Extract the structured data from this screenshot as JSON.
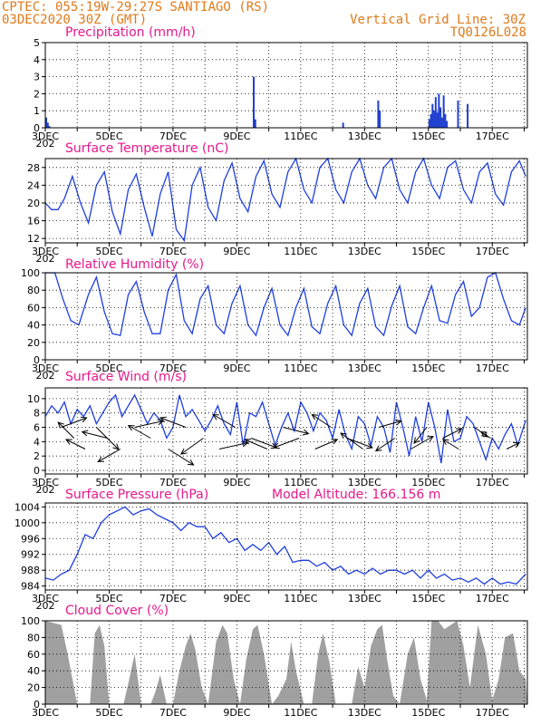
{
  "header": {
    "line1": "CPTEC:   055:19W-29:27S   SANTIAGO (RS)",
    "line2": "03DEC2020 30Z (GMT)",
    "right1": "Vertical Grid Line: 30Z",
    "right2": "TQ0126L028"
  },
  "colors": {
    "header": "#e07a1a",
    "title": "#e8188c",
    "line": "#1f3fe0",
    "bars": "#2040d0",
    "cloud": "#a0a0a0",
    "grid": "#000000",
    "arrows": "#000000"
  },
  "x_axis": {
    "start_day": 3,
    "end_day": 18.1,
    "tick_days": [
      3,
      5,
      7,
      9,
      11,
      13,
      15,
      17
    ],
    "tick_labels": [
      "3DEC",
      "5DEC",
      "7DEC",
      "9DEC",
      "11DEC",
      "13DEC",
      "15DEC",
      "17DEC"
    ],
    "overlap_label": "202"
  },
  "chart_data": [
    {
      "id": "precip",
      "type": "bar",
      "title": "Precipitation (mm/h)",
      "ylim": [
        0,
        5
      ],
      "yticks": [
        0,
        1,
        2,
        3,
        4,
        5
      ],
      "ytick_labels": [
        "0",
        "1",
        "2",
        "3",
        "4",
        "5"
      ],
      "x": [
        3.0,
        3.05,
        3.1,
        9.5,
        9.55,
        12.3,
        13.4,
        13.45,
        15.0,
        15.05,
        15.1,
        15.15,
        15.2,
        15.25,
        15.3,
        15.35,
        15.4,
        15.45,
        15.5,
        15.55,
        15.9,
        16.2
      ],
      "values": [
        0.6,
        0.3,
        0.1,
        3.0,
        0.5,
        0.3,
        1.6,
        1.0,
        0.5,
        0.8,
        1.4,
        1.0,
        1.8,
        0.9,
        2.0,
        1.2,
        0.6,
        1.9,
        0.8,
        0.4,
        1.6,
        1.4
      ]
    },
    {
      "id": "temp",
      "type": "line",
      "title": "Surface Temperature (nC)",
      "ylim": [
        11,
        30
      ],
      "yticks": [
        12,
        16,
        20,
        24,
        28
      ],
      "ytick_labels": [
        "12",
        "16",
        "20",
        "24",
        "28"
      ],
      "x": [
        3.0,
        3.2,
        3.4,
        3.6,
        3.85,
        4.1,
        4.35,
        4.6,
        4.85,
        5.1,
        5.35,
        5.6,
        5.85,
        6.1,
        6.35,
        6.6,
        6.85,
        7.1,
        7.35,
        7.6,
        7.85,
        8.1,
        8.35,
        8.6,
        8.85,
        9.1,
        9.35,
        9.6,
        9.85,
        10.1,
        10.35,
        10.6,
        10.85,
        11.1,
        11.35,
        11.6,
        11.85,
        12.1,
        12.35,
        12.6,
        12.85,
        13.1,
        13.35,
        13.6,
        13.85,
        14.1,
        14.35,
        14.6,
        14.85,
        15.1,
        15.35,
        15.6,
        15.85,
        16.1,
        16.35,
        16.6,
        16.85,
        17.1,
        17.35,
        17.6,
        17.85,
        18.05
      ],
      "values": [
        20,
        18.5,
        18.5,
        21,
        26,
        20,
        15.5,
        24,
        27,
        18,
        13,
        23,
        26.5,
        19,
        12.5,
        22,
        27,
        14,
        11.5,
        24,
        28,
        19,
        16,
        25,
        29,
        21,
        18,
        26,
        29.5,
        22,
        19,
        27,
        30,
        23,
        20,
        28,
        30,
        23,
        20,
        27,
        30,
        24,
        21,
        28,
        30,
        23,
        20,
        27,
        30,
        24,
        21,
        28,
        29.5,
        23,
        20,
        27,
        29,
        22,
        19.5,
        27,
        29.5,
        26
      ]
    },
    {
      "id": "rh",
      "type": "line",
      "title": "Relative Humidity (%)",
      "ylim": [
        0,
        100
      ],
      "yticks": [
        0,
        20,
        40,
        60,
        80,
        100
      ],
      "ytick_labels": [
        "0",
        "20",
        "40",
        "60",
        "80",
        "100"
      ],
      "x": [
        3.0,
        3.3,
        3.55,
        3.8,
        4.05,
        4.35,
        4.6,
        4.85,
        5.1,
        5.35,
        5.6,
        5.85,
        6.1,
        6.35,
        6.6,
        6.85,
        7.1,
        7.35,
        7.6,
        7.85,
        8.1,
        8.35,
        8.6,
        8.85,
        9.1,
        9.35,
        9.6,
        9.85,
        10.1,
        10.35,
        10.6,
        10.85,
        11.1,
        11.35,
        11.6,
        11.85,
        12.1,
        12.35,
        12.6,
        12.85,
        13.1,
        13.35,
        13.6,
        13.85,
        14.1,
        14.35,
        14.6,
        14.85,
        15.1,
        15.35,
        15.6,
        15.85,
        16.1,
        16.35,
        16.6,
        16.85,
        17.1,
        17.35,
        17.6,
        17.85,
        18.05
      ],
      "values": [
        100,
        100,
        70,
        45,
        40,
        75,
        95,
        55,
        30,
        28,
        75,
        90,
        55,
        30,
        30,
        80,
        98,
        45,
        30,
        70,
        85,
        40,
        30,
        65,
        85,
        40,
        28,
        60,
        82,
        40,
        28,
        60,
        82,
        38,
        30,
        65,
        85,
        40,
        28,
        65,
        82,
        38,
        28,
        62,
        85,
        38,
        30,
        60,
        85,
        45,
        42,
        75,
        90,
        50,
        60,
        95,
        100,
        70,
        45,
        40,
        60
      ]
    },
    {
      "id": "wind",
      "type": "line",
      "title": "Surface Wind (m/s)",
      "ylim": [
        -0.5,
        11.5
      ],
      "yticks": [
        0,
        2,
        4,
        6,
        8,
        10
      ],
      "ytick_labels": [
        "0",
        "2",
        "4",
        "6",
        "8",
        "10"
      ],
      "x": [
        3.0,
        3.2,
        3.4,
        3.6,
        3.8,
        4.0,
        4.2,
        4.4,
        4.6,
        4.8,
        5.0,
        5.2,
        5.4,
        5.6,
        5.8,
        6.0,
        6.2,
        6.4,
        6.6,
        6.8,
        7.0,
        7.2,
        7.4,
        7.6,
        7.8,
        8.0,
        8.2,
        8.4,
        8.6,
        8.8,
        9.0,
        9.2,
        9.4,
        9.6,
        9.8,
        10.0,
        10.2,
        10.4,
        10.6,
        10.8,
        11.0,
        11.2,
        11.4,
        11.6,
        11.8,
        12.0,
        12.2,
        12.4,
        12.6,
        12.8,
        13.0,
        13.2,
        13.4,
        13.6,
        13.8,
        14.0,
        14.2,
        14.4,
        14.6,
        14.8,
        15.0,
        15.2,
        15.4,
        15.6,
        15.8,
        16.0,
        16.2,
        16.4,
        16.6,
        16.8,
        17.0,
        17.2,
        17.4,
        17.6,
        17.8,
        18.05
      ],
      "values": [
        7.5,
        9.0,
        8.0,
        9.5,
        6.5,
        8.5,
        7.5,
        9.0,
        6.5,
        8.0,
        9.5,
        10.5,
        7.5,
        9.0,
        10.5,
        8.5,
        6.5,
        8.0,
        7.0,
        4.5,
        6.0,
        10.5,
        7.5,
        8.5,
        7.0,
        5.5,
        7.0,
        9.0,
        6.5,
        5.0,
        9.5,
        3.5,
        8.0,
        7.5,
        9.5,
        6.5,
        3.5,
        6.0,
        8.0,
        5.5,
        9.5,
        8.0,
        5.5,
        8.0,
        7.0,
        4.5,
        8.5,
        5.0,
        3.0,
        7.5,
        6.5,
        3.5,
        7.5,
        6.0,
        2.5,
        9.5,
        6.0,
        2.0,
        7.5,
        4.0,
        9.5,
        6.0,
        1.0,
        8.5,
        4.0,
        4.5,
        7.5,
        6.5,
        4.0,
        1.5,
        4.5,
        3.0,
        5.0,
        6.5,
        3.5,
        7.0
      ],
      "vectors": {
        "x": [
          3.5,
          3.9,
          4.25,
          4.6,
          4.95,
          5.35,
          5.8,
          6.3,
          6.85,
          7.4,
          7.95,
          8.45,
          8.95,
          9.45,
          9.95,
          10.45,
          10.95,
          11.45,
          11.95,
          12.45,
          12.95,
          13.45,
          13.95,
          14.45,
          14.95,
          15.45,
          15.95,
          16.45,
          16.95,
          17.45
        ],
        "u": [
          4.0,
          -2.5,
          -3.0,
          3.5,
          -4.0,
          -3.5,
          4.5,
          -3.5,
          4.0,
          -4.0,
          -3.5,
          4.5,
          -3.5,
          4.0,
          -3.5,
          4.0,
          -4.0,
          3.5,
          -3.0,
          4.0,
          -3.5,
          3.5,
          -3.0,
          3.5,
          -2.0,
          3.0,
          -2.5,
          2.0,
          -1.5,
          2.0
        ],
        "v": [
          1.5,
          2.5,
          1.5,
          -3.5,
          1.0,
          -2.0,
          1.0,
          2.0,
          -2.5,
          1.5,
          -2.5,
          1.0,
          2.0,
          -1.5,
          1.5,
          -1.0,
          -1.5,
          1.5,
          2.0,
          -1.5,
          2.5,
          1.0,
          -2.0,
          2.0,
          -2.5,
          1.5,
          1.5,
          -1.5,
          1.0,
          1.0
        ]
      }
    },
    {
      "id": "pres",
      "type": "line",
      "title": "Surface Pressure (hPa)",
      "subtitle": "Model Altitude: 166.156 m",
      "ylim": [
        983,
        1005
      ],
      "yticks": [
        984,
        988,
        992,
        996,
        1000,
        1004
      ],
      "ytick_labels": [
        "984",
        "988",
        "992",
        "996",
        "1000",
        "1004"
      ],
      "x": [
        3.0,
        3.25,
        3.5,
        3.75,
        4.0,
        4.25,
        4.5,
        4.75,
        5.0,
        5.25,
        5.5,
        5.75,
        6.0,
        6.25,
        6.5,
        6.75,
        7.0,
        7.25,
        7.5,
        7.75,
        8.0,
        8.25,
        8.5,
        8.75,
        9.0,
        9.25,
        9.5,
        9.75,
        10.0,
        10.25,
        10.5,
        10.75,
        11.0,
        11.25,
        11.5,
        11.75,
        12.0,
        12.25,
        12.5,
        12.75,
        13.0,
        13.25,
        13.5,
        13.75,
        14.0,
        14.25,
        14.5,
        14.75,
        15.0,
        15.25,
        15.5,
        15.75,
        16.0,
        16.25,
        16.5,
        16.75,
        17.0,
        17.25,
        17.5,
        17.75,
        18.05
      ],
      "values": [
        986,
        985.5,
        987,
        988,
        992,
        997,
        996,
        1000,
        1002,
        1003,
        1004,
        1002,
        1003,
        1003.5,
        1002,
        1001,
        1000,
        998,
        1000,
        999,
        999,
        996,
        997.5,
        995,
        996,
        993,
        994.5,
        993,
        995,
        992,
        994,
        990,
        990.5,
        990.5,
        989,
        990,
        988,
        989,
        987,
        988,
        987,
        988.5,
        987,
        988,
        988,
        987,
        988,
        986,
        988,
        986,
        987,
        985.5,
        986,
        985,
        986,
        984.5,
        986,
        984.5,
        985,
        984.5,
        987
      ]
    },
    {
      "id": "cloud",
      "type": "area",
      "title": "Cloud Cover (%)",
      "ylim": [
        0,
        100
      ],
      "yticks": [
        0,
        20,
        40,
        60,
        80,
        100
      ],
      "ytick_labels": [
        "0",
        "20",
        "40",
        "60",
        "80",
        "100"
      ],
      "x": [
        3.0,
        3.5,
        3.7,
        4.0,
        4.4,
        4.55,
        4.7,
        4.85,
        5.0,
        5.25,
        5.45,
        5.6,
        5.8,
        6.0,
        6.3,
        6.45,
        6.6,
        6.8,
        7.0,
        7.2,
        7.4,
        7.55,
        7.7,
        7.9,
        8.1,
        8.35,
        8.55,
        8.7,
        8.9,
        9.1,
        9.3,
        9.5,
        9.65,
        9.85,
        10.1,
        10.3,
        10.55,
        10.7,
        10.85,
        11.1,
        11.35,
        11.55,
        11.7,
        11.9,
        12.1,
        12.3,
        12.6,
        12.8,
        13.0,
        13.2,
        13.4,
        13.55,
        13.7,
        13.9,
        14.1,
        14.35,
        14.55,
        14.75,
        14.95,
        15.1,
        15.3,
        15.5,
        15.7,
        15.9,
        16.1,
        16.3,
        16.55,
        16.8,
        17.0,
        17.2,
        17.4,
        17.65,
        17.85,
        18.05
      ],
      "values": [
        100,
        95,
        60,
        0,
        0,
        85,
        95,
        70,
        0,
        0,
        0,
        25,
        60,
        0,
        0,
        15,
        35,
        0,
        0,
        40,
        70,
        85,
        65,
        20,
        0,
        75,
        95,
        85,
        30,
        0,
        55,
        90,
        95,
        60,
        0,
        10,
        30,
        75,
        40,
        0,
        0,
        60,
        85,
        50,
        0,
        0,
        0,
        45,
        20,
        70,
        90,
        95,
        55,
        10,
        0,
        60,
        80,
        30,
        5,
        100,
        100,
        90,
        95,
        100,
        70,
        20,
        95,
        60,
        5,
        30,
        80,
        85,
        40,
        30
      ]
    }
  ]
}
